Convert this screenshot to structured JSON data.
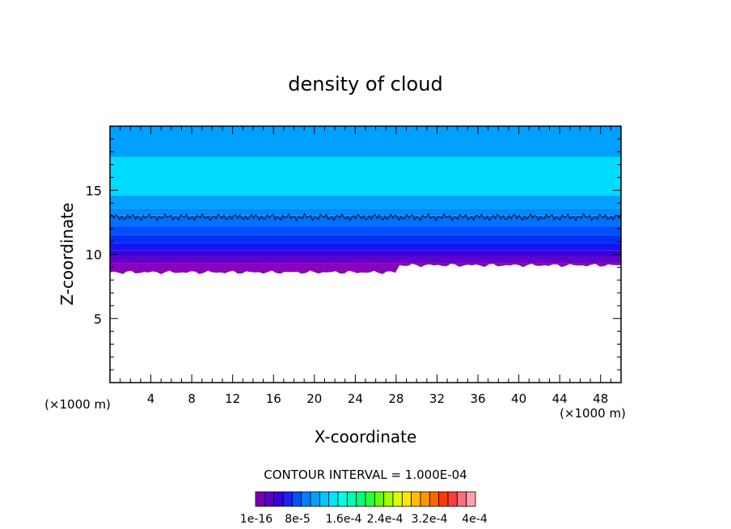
{
  "chart_data": {
    "type": "heatmap",
    "title": "density of cloud",
    "xlabel": "X-coordinate",
    "ylabel": "Z-coordinate",
    "x_unit_left": "(×1000 m)",
    "x_unit_right": "(×1000 m)",
    "xlim": [
      0,
      50
    ],
    "ylim": [
      0,
      20
    ],
    "xticks": [
      4,
      8,
      12,
      16,
      20,
      24,
      28,
      32,
      36,
      40,
      44,
      48
    ],
    "yticks": [
      5,
      10,
      15
    ],
    "contour_interval_text": "CONTOUR INTERVAL = 1.000E-04",
    "colorbar": {
      "labels": [
        "1e-16",
        "8e-5",
        "1.6e-4",
        "2.4e-4",
        "3.2e-4",
        "4e-4"
      ],
      "colors": [
        "#7a00b4",
        "#5a00c8",
        "#3c00dc",
        "#1e1ef0",
        "#0050ff",
        "#0080ff",
        "#00a0ff",
        "#00c8ff",
        "#00e6ff",
        "#00ffe6",
        "#00ffb4",
        "#00ff78",
        "#28ff3c",
        "#64ff00",
        "#a0ff00",
        "#dcff00",
        "#ffe600",
        "#ffbe00",
        "#ff9600",
        "#ff6400",
        "#ff3c00",
        "#ff3c3c",
        "#ff6e78",
        "#ffa0aa"
      ]
    },
    "bands": [
      {
        "z0": 8.6,
        "z1": 9.3,
        "color": "#8c00c0"
      },
      {
        "z0": 9.3,
        "z1": 9.8,
        "color": "#6400c8"
      },
      {
        "z0": 9.8,
        "z1": 10.3,
        "color": "#3c00dc"
      },
      {
        "z0": 10.3,
        "z1": 10.9,
        "color": "#1414f0"
      },
      {
        "z0": 10.9,
        "z1": 11.5,
        "color": "#0032f5"
      },
      {
        "z0": 11.5,
        "z1": 12.2,
        "color": "#0050ff"
      },
      {
        "z0": 12.2,
        "z1": 13.0,
        "color": "#0070ff"
      },
      {
        "z0": 13.0,
        "z1": 13.6,
        "color": "#008cff"
      },
      {
        "z0": 13.6,
        "z1": 14.6,
        "color": "#00a0ff"
      },
      {
        "z0": 14.6,
        "z1": 17.6,
        "color": "#00dcff"
      },
      {
        "z0": 17.6,
        "z1": 20.0,
        "color": "#00a0ff"
      }
    ]
  }
}
